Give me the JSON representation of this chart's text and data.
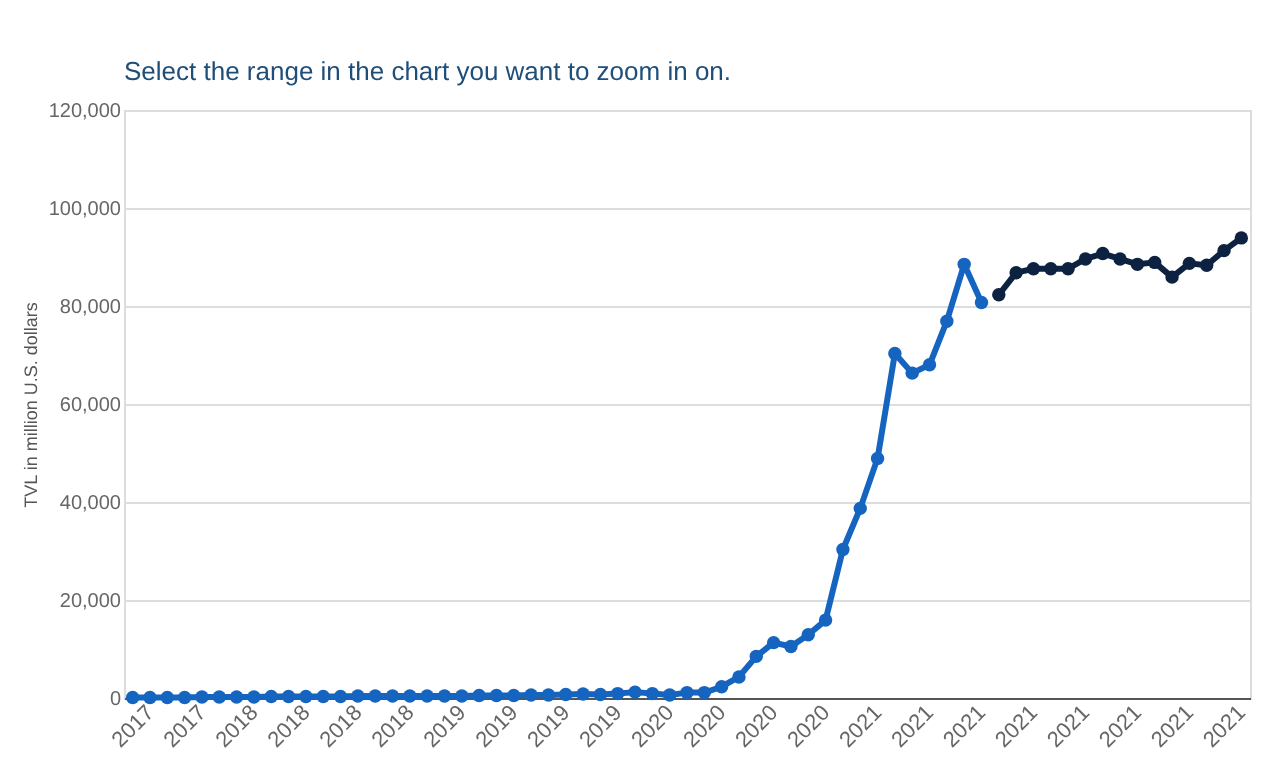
{
  "chart_data": {
    "type": "line",
    "annotations": [
      "Select the range in the chart you want to zoom in on."
    ],
    "ylabel": "TVL in million U.S. dollars",
    "categories": [
      "2017",
      null,
      null,
      "2017",
      null,
      null,
      "2018",
      null,
      null,
      "2018",
      null,
      null,
      "2018",
      null,
      null,
      "2018",
      null,
      null,
      "2019",
      null,
      null,
      "2019",
      null,
      null,
      "2019",
      null,
      null,
      "2019",
      null,
      null,
      "2020",
      null,
      null,
      "2020",
      null,
      null,
      "2020",
      null,
      null,
      "2020",
      null,
      null,
      "2021",
      null,
      null,
      "2021",
      null,
      null,
      "2021",
      null,
      null,
      "2021",
      null,
      null,
      "2021",
      null,
      null,
      "2021",
      null,
      null,
      "2021",
      null,
      null,
      "2021",
      null
    ],
    "series": [
      {
        "color": "#1565c0",
        "values": [
          100,
          100,
          100,
          100,
          200,
          200,
          200,
          200,
          300,
          300,
          300,
          300,
          300,
          400,
          400,
          400,
          400,
          400,
          400,
          400,
          500,
          500,
          500,
          600,
          600,
          700,
          800,
          700,
          900,
          1200,
          900,
          600,
          1100,
          1100,
          2300,
          4300,
          8500,
          11300,
          10500,
          12900,
          15900,
          30300,
          38700,
          48900,
          70300,
          66300,
          68000,
          76900,
          88500,
          80700,
          null,
          null,
          null,
          null,
          null,
          null,
          null,
          null,
          null,
          null,
          null,
          null,
          null,
          null,
          null
        ]
      },
      {
        "color": "#0d2240",
        "values": [
          null,
          null,
          null,
          null,
          null,
          null,
          null,
          null,
          null,
          null,
          null,
          null,
          null,
          null,
          null,
          null,
          null,
          null,
          null,
          null,
          null,
          null,
          null,
          null,
          null,
          null,
          null,
          null,
          null,
          null,
          null,
          null,
          null,
          null,
          null,
          null,
          null,
          null,
          null,
          null,
          null,
          null,
          null,
          null,
          null,
          null,
          null,
          null,
          null,
          null,
          82300,
          86800,
          87600,
          87600,
          87600,
          89600,
          90700,
          89600,
          88500,
          88900,
          85900,
          88700,
          88300,
          91300,
          93900
        ]
      }
    ],
    "ylim": [
      0,
      120000
    ],
    "yticks": [
      0,
      {
        "value": 20000,
        "label": "20,000"
      },
      {
        "value": 40000,
        "label": "40,000"
      },
      {
        "value": 60000,
        "label": "60,000"
      },
      {
        "value": 80000,
        "label": "80,000"
      },
      {
        "value": 100000,
        "label": "100,000"
      },
      {
        "value": 120000,
        "label": "120,000"
      }
    ],
    "grid": "y",
    "marker": "circle",
    "line_style": "solid"
  }
}
